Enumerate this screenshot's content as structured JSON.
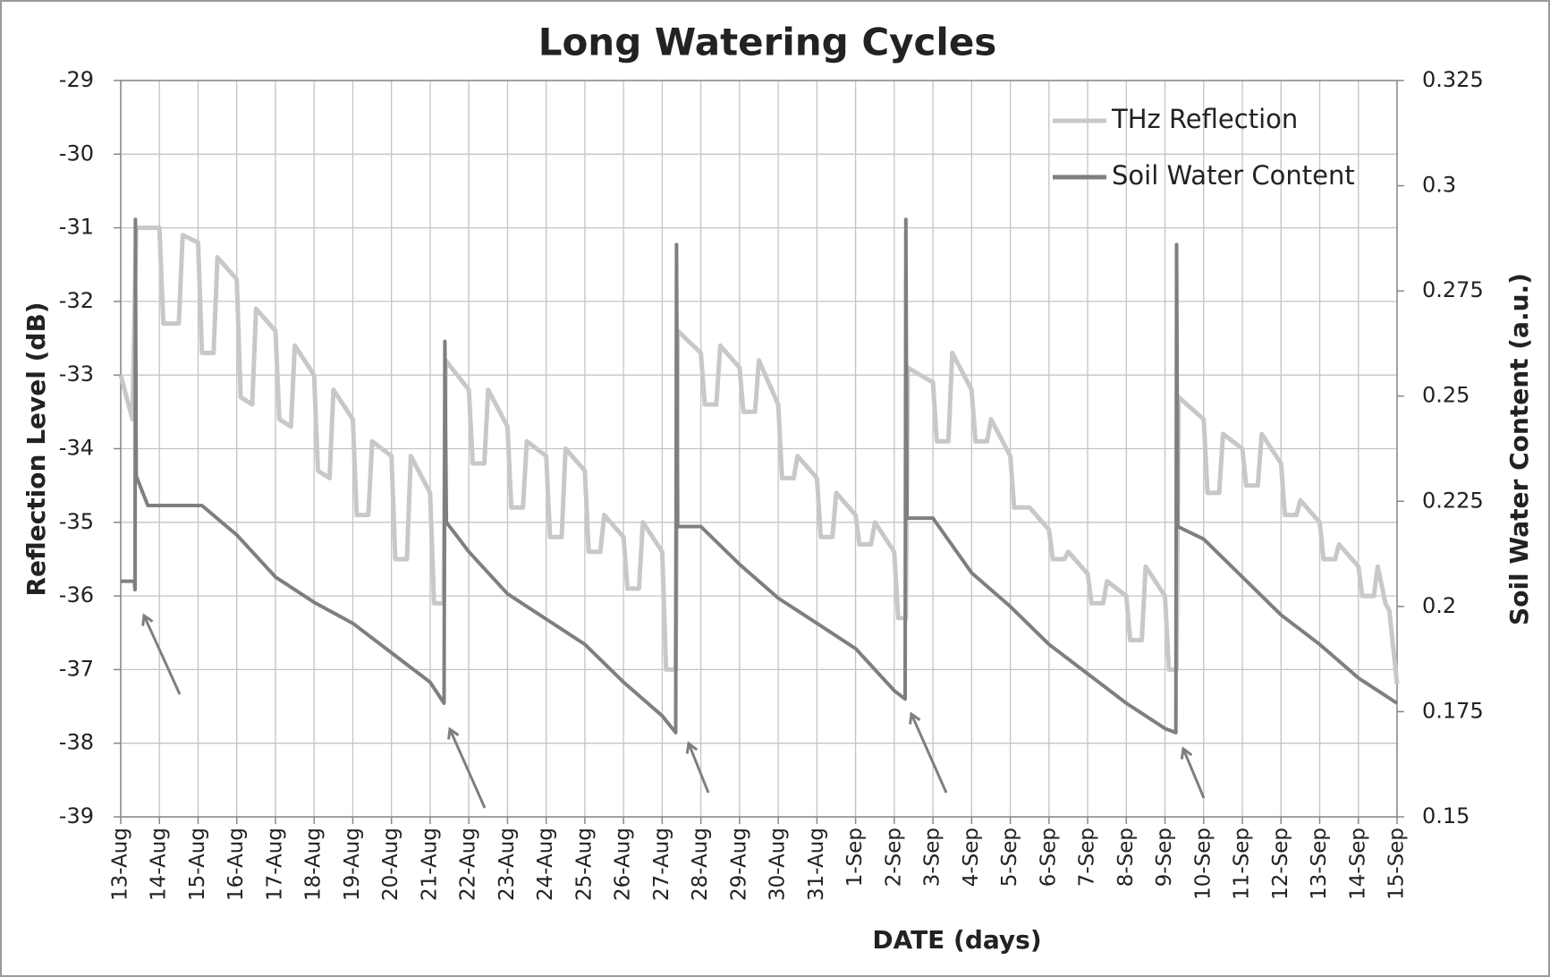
{
  "chart_data": {
    "type": "line",
    "title": "Long Watering Cycles",
    "xlabel": "DATE (days)",
    "ylabel": "Reflection Level (dB)",
    "y2label": "Soil Water Content (a.u.)",
    "xlim": [
      0,
      33
    ],
    "xticks": [
      {
        "value": 0,
        "label": "13-Aug"
      },
      {
        "value": 1,
        "label": "14-Aug"
      },
      {
        "value": 2,
        "label": "15-Aug"
      },
      {
        "value": 3,
        "label": "16-Aug"
      },
      {
        "value": 4,
        "label": "17-Aug"
      },
      {
        "value": 5,
        "label": "18-Aug"
      },
      {
        "value": 6,
        "label": "19-Aug"
      },
      {
        "value": 7,
        "label": "20-Aug"
      },
      {
        "value": 8,
        "label": "21-Aug"
      },
      {
        "value": 9,
        "label": "22-Aug"
      },
      {
        "value": 10,
        "label": "23-Aug"
      },
      {
        "value": 11,
        "label": "24-Aug"
      },
      {
        "value": 12,
        "label": "25-Aug"
      },
      {
        "value": 13,
        "label": "26-Aug"
      },
      {
        "value": 14,
        "label": "27-Aug"
      },
      {
        "value": 15,
        "label": "28-Aug"
      },
      {
        "value": 16,
        "label": "29-Aug"
      },
      {
        "value": 17,
        "label": "30-Aug"
      },
      {
        "value": 18,
        "label": "31-Aug"
      },
      {
        "value": 19,
        "label": "1-Sep"
      },
      {
        "value": 20,
        "label": "2-Sep"
      },
      {
        "value": 21,
        "label": "3-Sep"
      },
      {
        "value": 22,
        "label": "4-Sep"
      },
      {
        "value": 23,
        "label": "5-Sep"
      },
      {
        "value": 24,
        "label": "6-Sep"
      },
      {
        "value": 25,
        "label": "7-Sep"
      },
      {
        "value": 26,
        "label": "8-Sep"
      },
      {
        "value": 27,
        "label": "9-Sep"
      },
      {
        "value": 28,
        "label": "10-Sep"
      },
      {
        "value": 29,
        "label": "11-Sep"
      },
      {
        "value": 30,
        "label": "12-Sep"
      },
      {
        "value": 31,
        "label": "13-Sep"
      },
      {
        "value": 32,
        "label": "14-Sep"
      },
      {
        "value": 33,
        "label": "15-Sep"
      }
    ],
    "ylim": [
      -39,
      -29
    ],
    "yticks": [
      -39,
      -38,
      -37,
      -36,
      -35,
      -34,
      -33,
      -32,
      -31,
      -30,
      -29
    ],
    "y2lim": [
      0.15,
      0.325
    ],
    "y2ticks": [
      0.15,
      0.175,
      0.2,
      0.225,
      0.25,
      0.275,
      0.3,
      0.325
    ],
    "grid": true,
    "legend": "upper right",
    "series": [
      {
        "name": "THz Reflection",
        "color": "#c8c8c8",
        "x": [
          0,
          0.3,
          0.4,
          1.0,
          1.1,
          1.5,
          1.6,
          2.0,
          2.1,
          2.4,
          2.5,
          3.0,
          3.1,
          3.4,
          3.5,
          4.0,
          4.1,
          4.4,
          4.5,
          5.0,
          5.1,
          5.4,
          5.5,
          6.0,
          6.1,
          6.4,
          6.5,
          7.0,
          7.1,
          7.4,
          7.5,
          8.0,
          8.1,
          8.35,
          8.4,
          9.0,
          9.1,
          9.4,
          9.5,
          10.0,
          10.1,
          10.4,
          10.5,
          11.0,
          11.1,
          11.4,
          11.5,
          12.0,
          12.1,
          12.4,
          12.5,
          13.0,
          13.1,
          13.4,
          13.5,
          14.0,
          14.1,
          14.35,
          14.4,
          15.0,
          15.1,
          15.4,
          15.5,
          16.0,
          16.1,
          16.4,
          16.5,
          17.0,
          17.1,
          17.4,
          17.5,
          18.0,
          18.1,
          18.4,
          18.5,
          19.0,
          19.1,
          19.4,
          19.5,
          20.0,
          20.1,
          20.3,
          20.35,
          21.0,
          21.1,
          21.4,
          21.5,
          22.0,
          22.1,
          22.4,
          22.5,
          23.0,
          23.1,
          23.4,
          23.5,
          24.0,
          24.1,
          24.4,
          24.5,
          25.0,
          25.1,
          25.4,
          25.5,
          26.0,
          26.1,
          26.4,
          26.5,
          27.0,
          27.1,
          27.3,
          27.35,
          28.0,
          28.1,
          28.4,
          28.5,
          29.0,
          29.1,
          29.4,
          29.5,
          30.0,
          30.1,
          30.4,
          30.5,
          31.0,
          31.1,
          31.4,
          31.5,
          32.0,
          32.1,
          32.4,
          32.5,
          32.7,
          32.8,
          33.0
        ],
        "values": [
          -33.0,
          -33.6,
          -31.0,
          -31.0,
          -32.3,
          -32.3,
          -31.1,
          -31.2,
          -32.7,
          -32.7,
          -31.4,
          -31.7,
          -33.3,
          -33.4,
          -32.1,
          -32.4,
          -33.6,
          -33.7,
          -32.6,
          -33.0,
          -34.3,
          -34.4,
          -33.2,
          -33.6,
          -34.9,
          -34.9,
          -33.9,
          -34.1,
          -35.5,
          -35.5,
          -34.1,
          -34.6,
          -36.1,
          -36.1,
          -32.8,
          -33.2,
          -34.2,
          -34.2,
          -33.2,
          -33.7,
          -34.8,
          -34.8,
          -33.9,
          -34.1,
          -35.2,
          -35.2,
          -34.0,
          -34.3,
          -35.4,
          -35.4,
          -34.9,
          -35.2,
          -35.9,
          -35.9,
          -35.0,
          -35.4,
          -37.0,
          -37.0,
          -32.4,
          -32.7,
          -33.4,
          -33.4,
          -32.6,
          -32.9,
          -33.5,
          -33.5,
          -32.8,
          -33.4,
          -34.4,
          -34.4,
          -34.1,
          -34.4,
          -35.2,
          -35.2,
          -34.6,
          -34.9,
          -35.3,
          -35.3,
          -35.0,
          -35.4,
          -36.3,
          -36.3,
          -32.9,
          -33.1,
          -33.9,
          -33.9,
          -32.7,
          -33.2,
          -33.9,
          -33.9,
          -33.6,
          -34.1,
          -34.8,
          -34.8,
          -34.8,
          -35.1,
          -35.5,
          -35.5,
          -35.4,
          -35.7,
          -36.1,
          -36.1,
          -35.8,
          -36.0,
          -36.6,
          -36.6,
          -35.6,
          -36.0,
          -37.0,
          -37.0,
          -33.3,
          -33.6,
          -34.6,
          -34.6,
          -33.8,
          -34.0,
          -34.5,
          -34.5,
          -33.8,
          -34.2,
          -34.9,
          -34.9,
          -34.7,
          -35.0,
          -35.5,
          -35.5,
          -35.3,
          -35.6,
          -36.0,
          -36.0,
          -35.6,
          -36.1,
          -36.2,
          -37.2
        ]
      },
      {
        "name": "Soil Water Content",
        "color": "#7f7f7f",
        "axis": "y2",
        "x": [
          0,
          0.35,
          0.37,
          0.38,
          0.4,
          0.7,
          2.1,
          3,
          4,
          5,
          6,
          7,
          8,
          8.36,
          8.38,
          8.42,
          9,
          10,
          11,
          12,
          13,
          14,
          14.35,
          14.37,
          14.4,
          15,
          16,
          17,
          18,
          19,
          20,
          20.28,
          20.3,
          20.33,
          21,
          22,
          23,
          24,
          25,
          26,
          27,
          27.28,
          27.3,
          27.33,
          28,
          29,
          30,
          31,
          32,
          33
        ],
        "values": [
          0.206,
          0.206,
          0.204,
          0.292,
          0.231,
          0.224,
          0.224,
          0.217,
          0.207,
          0.201,
          0.196,
          0.189,
          0.182,
          0.177,
          0.263,
          0.22,
          0.213,
          0.203,
          0.197,
          0.191,
          0.182,
          0.174,
          0.17,
          0.286,
          0.219,
          0.219,
          0.21,
          0.202,
          0.196,
          0.19,
          0.18,
          0.178,
          0.292,
          0.221,
          0.221,
          0.208,
          0.2,
          0.191,
          0.184,
          0.177,
          0.171,
          0.17,
          0.286,
          0.219,
          0.216,
          0.207,
          0.198,
          0.191,
          0.183,
          0.177
        ]
      }
    ]
  }
}
